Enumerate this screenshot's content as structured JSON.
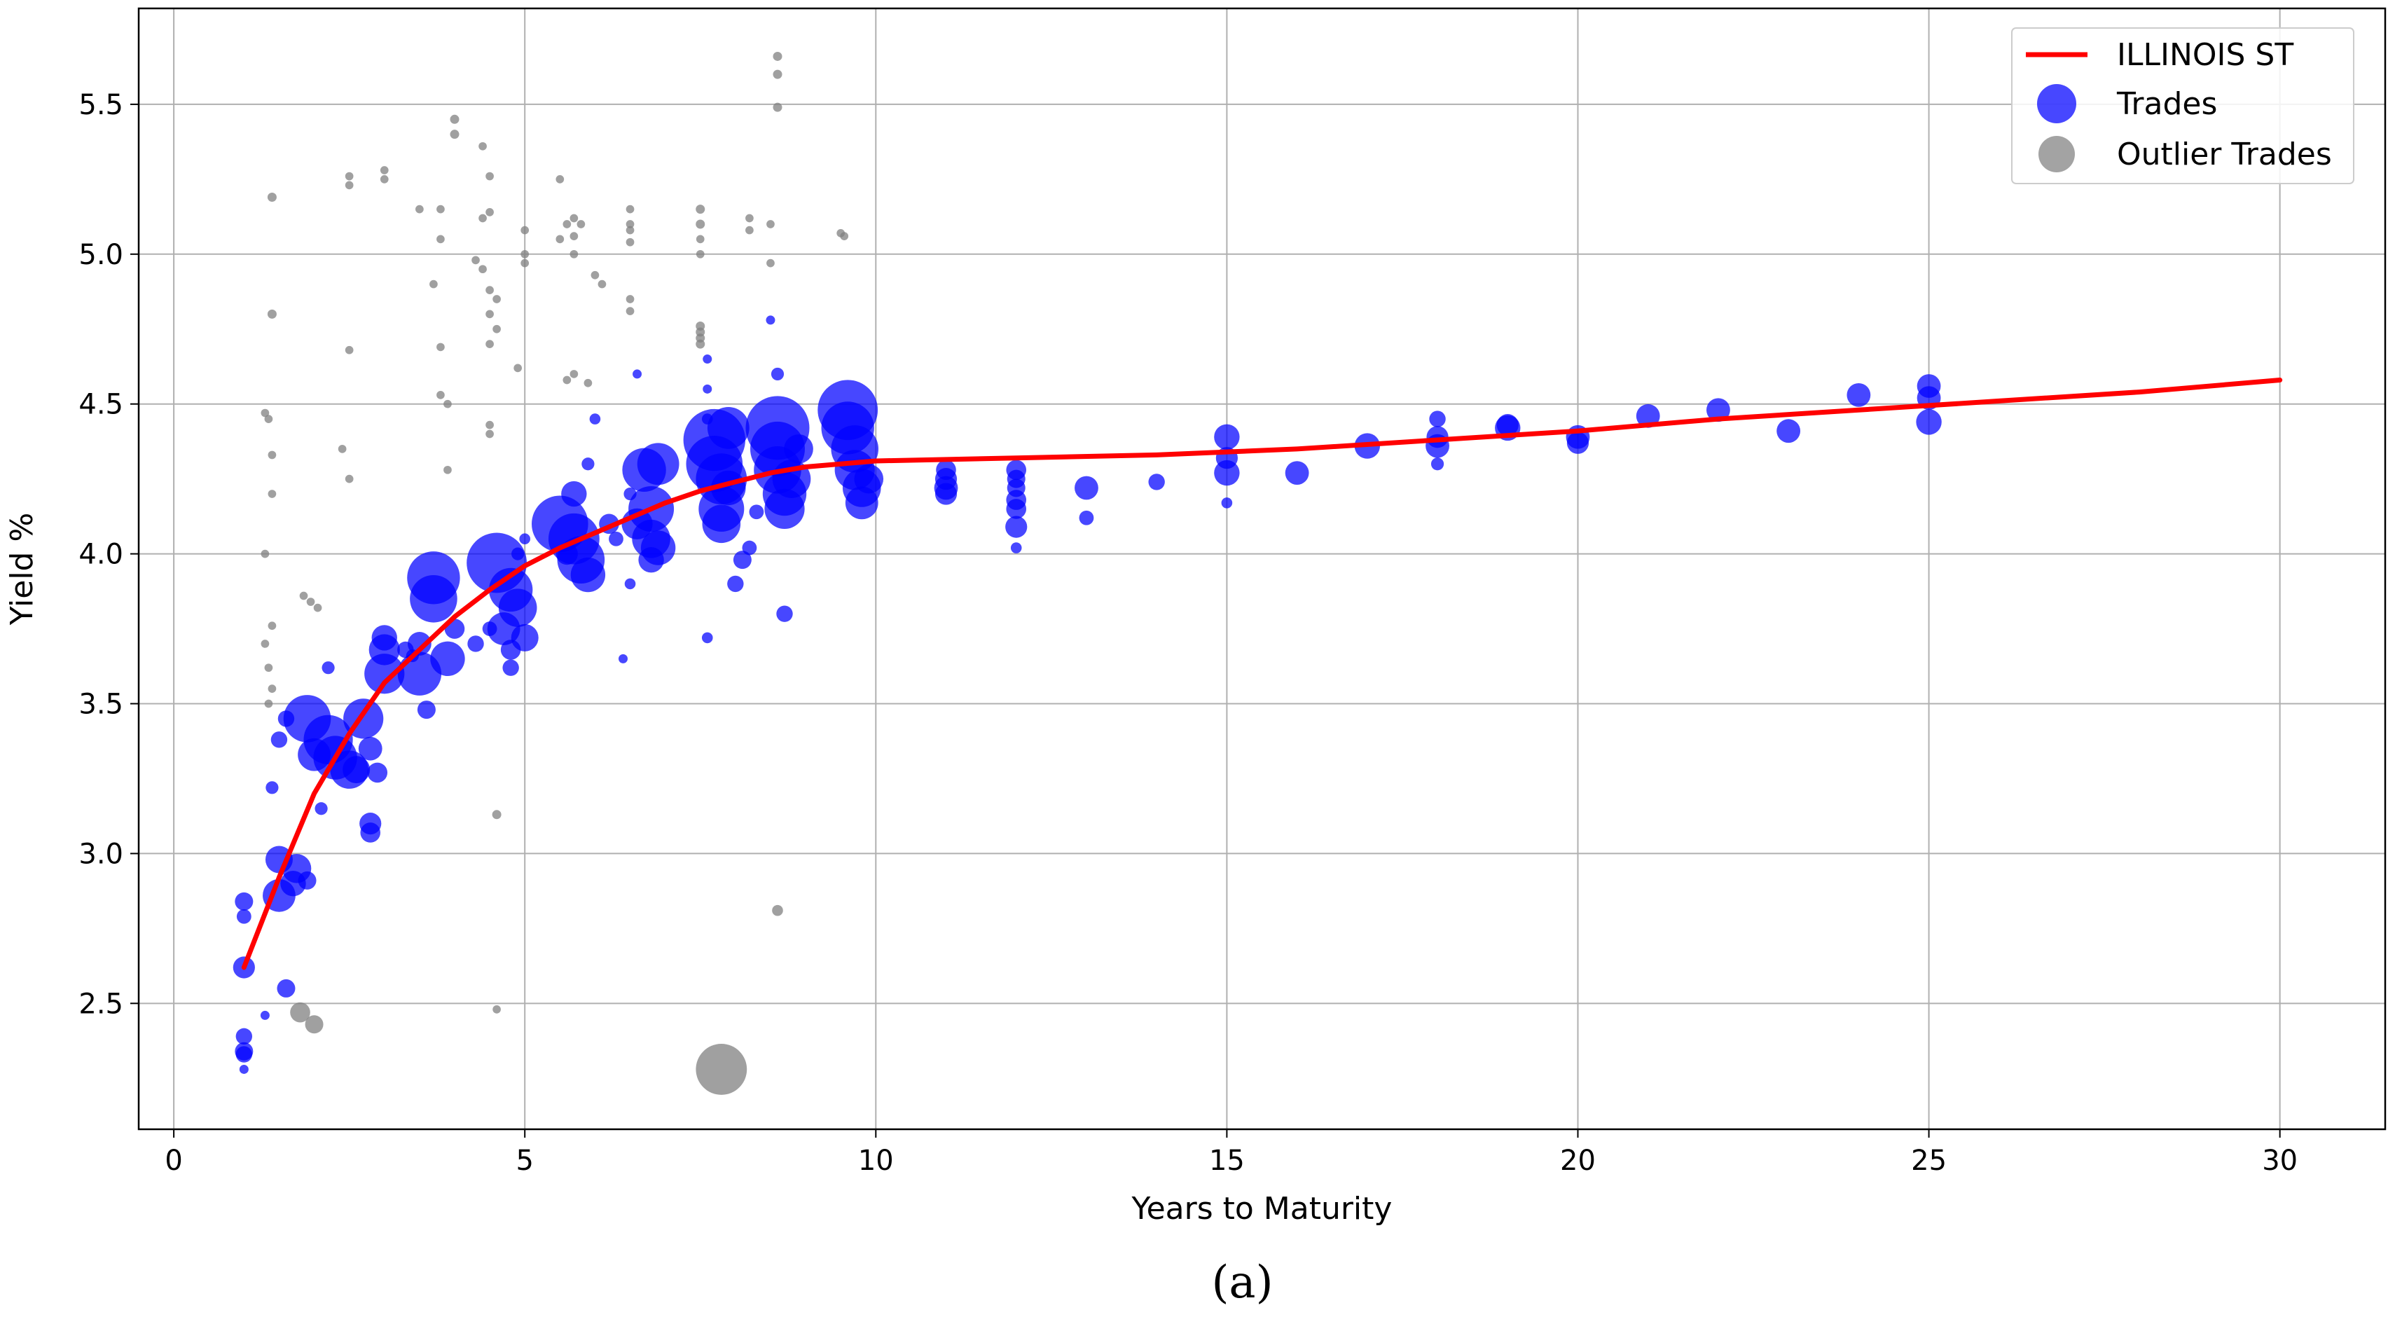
{
  "figure": {
    "panel_label": "(a)"
  },
  "chart_data": {
    "type": "scatter",
    "xlabel": "Years to Maturity",
    "ylabel": "Yield %",
    "xlim": [
      -0.5,
      31.5
    ],
    "ylim": [
      2.08,
      5.82
    ],
    "xticks": [
      0,
      5,
      10,
      15,
      20,
      25,
      30
    ],
    "yticks": [
      2.5,
      3.0,
      3.5,
      4.0,
      4.5,
      5.0,
      5.5
    ],
    "xtick_labels": [
      "0",
      "5",
      "10",
      "15",
      "20",
      "25",
      "30"
    ],
    "ytick_labels": [
      "2.5",
      "3.0",
      "3.5",
      "4.0",
      "4.5",
      "5.0",
      "5.5"
    ],
    "grid": true,
    "legend": {
      "position": "top-right",
      "entries": [
        {
          "label": "ILLINOIS ST",
          "kind": "line",
          "color": "#ff0000"
        },
        {
          "label": "Trades",
          "kind": "marker",
          "color": "#0000ff"
        },
        {
          "label": "Outlier Trades",
          "kind": "marker",
          "color": "#808080"
        }
      ]
    },
    "curve": {
      "name": "ILLINOIS ST",
      "color": "#ff0000",
      "x": [
        1,
        1.5,
        2,
        2.5,
        3,
        3.5,
        4,
        4.5,
        5,
        5.5,
        6,
        6.5,
        7,
        7.5,
        8,
        8.5,
        9,
        9.5,
        10,
        12,
        14,
        16,
        18,
        20,
        22,
        24,
        26,
        28,
        30
      ],
      "y": [
        2.62,
        2.92,
        3.2,
        3.4,
        3.57,
        3.68,
        3.79,
        3.88,
        3.96,
        4.02,
        4.07,
        4.12,
        4.17,
        4.21,
        4.24,
        4.27,
        4.29,
        4.3,
        4.31,
        4.32,
        4.33,
        4.35,
        4.38,
        4.41,
        4.45,
        4.48,
        4.51,
        4.54,
        4.58
      ]
    },
    "series": [
      {
        "name": "Trades",
        "color": "#0000ff",
        "points": [
          [
            1.0,
            2.62,
            1.2
          ],
          [
            1.0,
            2.84,
            1
          ],
          [
            1.0,
            2.79,
            0.8
          ],
          [
            1.0,
            2.39,
            0.9
          ],
          [
            1.0,
            2.34,
            1
          ],
          [
            1.0,
            2.33,
            0.9
          ],
          [
            1.0,
            2.28,
            0.5
          ],
          [
            1.3,
            2.46,
            0.5
          ],
          [
            1.6,
            2.55,
            1
          ],
          [
            1.5,
            2.86,
            1.8
          ],
          [
            1.5,
            2.98,
            1.5
          ],
          [
            1.7,
            2.9,
            1.4
          ],
          [
            1.75,
            2.95,
            1.6
          ],
          [
            1.9,
            2.91,
            1
          ],
          [
            1.4,
            3.22,
            0.7
          ],
          [
            1.5,
            3.38,
            0.9
          ],
          [
            1.6,
            3.45,
            0.9
          ],
          [
            1.9,
            3.45,
            2.6
          ],
          [
            2.0,
            3.33,
            1.8
          ],
          [
            2.2,
            3.38,
            2.7
          ],
          [
            2.3,
            3.32,
            2.4
          ],
          [
            2.5,
            3.28,
            2.1
          ],
          [
            2.7,
            3.45,
            2.2
          ],
          [
            2.6,
            3.28,
            1.5
          ],
          [
            2.8,
            3.35,
            1.3
          ],
          [
            2.9,
            3.27,
            1.1
          ],
          [
            2.8,
            3.1,
            1.2
          ],
          [
            2.8,
            3.07,
            1.1
          ],
          [
            2.1,
            3.15,
            0.7
          ],
          [
            2.2,
            3.62,
            0.7
          ],
          [
            3.0,
            3.6,
            2.2
          ],
          [
            3.0,
            3.68,
            1.7
          ],
          [
            3.0,
            3.72,
            1.4
          ],
          [
            3.3,
            3.68,
            0.9
          ],
          [
            3.4,
            3.66,
            0.7
          ],
          [
            3.5,
            3.6,
            2.4
          ],
          [
            3.6,
            3.48,
            1
          ],
          [
            3.7,
            3.92,
            2.9
          ],
          [
            3.7,
            3.85,
            2.6
          ],
          [
            3.9,
            3.65,
            1.9
          ],
          [
            3.5,
            3.7,
            1.3
          ],
          [
            4.0,
            3.75,
            1.1
          ],
          [
            4.6,
            3.97,
            3.3
          ],
          [
            4.8,
            3.88,
            2.4
          ],
          [
            4.9,
            3.82,
            2.1
          ],
          [
            4.7,
            3.75,
            1.8
          ],
          [
            5.0,
            3.72,
            1.5
          ],
          [
            4.8,
            3.68,
            1.1
          ],
          [
            4.8,
            3.62,
            0.9
          ],
          [
            4.3,
            3.7,
            0.9
          ],
          [
            4.5,
            3.75,
            0.8
          ],
          [
            4.9,
            4.0,
            0.7
          ],
          [
            5.0,
            4.05,
            0.6
          ],
          [
            5.5,
            4.1,
            3.1
          ],
          [
            5.7,
            4.05,
            2.8
          ],
          [
            5.8,
            3.98,
            2.6
          ],
          [
            5.9,
            3.93,
            1.9
          ],
          [
            5.7,
            4.2,
            1.4
          ],
          [
            5.6,
            4.0,
            1.2
          ],
          [
            5.9,
            4.3,
            0.7
          ],
          [
            6.0,
            4.45,
            0.6
          ],
          [
            6.2,
            4.1,
            1.1
          ],
          [
            6.3,
            4.05,
            0.8
          ],
          [
            6.5,
            3.9,
            0.6
          ],
          [
            6.4,
            3.65,
            0.5
          ],
          [
            6.7,
            4.28,
            2.4
          ],
          [
            6.9,
            4.3,
            2.3
          ],
          [
            6.8,
            4.15,
            2.5
          ],
          [
            6.8,
            4.05,
            2.1
          ],
          [
            6.9,
            4.02,
            1.9
          ],
          [
            6.6,
            4.1,
            1.7
          ],
          [
            6.8,
            3.98,
            1.4
          ],
          [
            6.6,
            4.6,
            0.5
          ],
          [
            6.5,
            4.2,
            0.7
          ],
          [
            7.7,
            4.38,
            3.4
          ],
          [
            7.7,
            4.3,
            3.1
          ],
          [
            7.8,
            4.25,
            2.8
          ],
          [
            7.8,
            4.15,
            2.5
          ],
          [
            7.8,
            4.1,
            2.1
          ],
          [
            7.9,
            4.42,
            2.3
          ],
          [
            7.9,
            4.22,
            1.9
          ],
          [
            7.6,
            4.45,
            0.6
          ],
          [
            7.6,
            4.55,
            0.5
          ],
          [
            7.6,
            4.65,
            0.5
          ],
          [
            7.6,
            3.72,
            0.6
          ],
          [
            8.0,
            3.9,
            0.9
          ],
          [
            8.1,
            3.98,
            1
          ],
          [
            8.2,
            4.02,
            0.8
          ],
          [
            8.3,
            4.14,
            0.8
          ],
          [
            8.6,
            4.42,
            3.5
          ],
          [
            8.6,
            4.35,
            3
          ],
          [
            8.6,
            4.28,
            2.6
          ],
          [
            8.7,
            4.2,
            2.4
          ],
          [
            8.7,
            4.15,
            2.2
          ],
          [
            8.8,
            4.25,
            2.1
          ],
          [
            8.9,
            4.35,
            1.6
          ],
          [
            8.6,
            4.6,
            0.7
          ],
          [
            8.7,
            3.8,
            0.9
          ],
          [
            8.5,
            4.78,
            0.5
          ],
          [
            9.6,
            4.48,
            3.3
          ],
          [
            9.6,
            4.42,
            2.9
          ],
          [
            9.7,
            4.35,
            2.6
          ],
          [
            9.7,
            4.28,
            2.2
          ],
          [
            9.8,
            4.22,
            2.1
          ],
          [
            9.8,
            4.17,
            1.8
          ],
          [
            9.9,
            4.25,
            1.6
          ],
          [
            11.0,
            4.28,
            1.1
          ],
          [
            11.0,
            4.25,
            1.2
          ],
          [
            11.0,
            4.22,
            1.3
          ],
          [
            11.0,
            4.2,
            1.2
          ],
          [
            12.0,
            4.28,
            1.1
          ],
          [
            12.0,
            4.25,
            1
          ],
          [
            12.0,
            4.22,
            1
          ],
          [
            12.0,
            4.18,
            1.1
          ],
          [
            12.0,
            4.15,
            1.1
          ],
          [
            12.0,
            4.09,
            1.2
          ],
          [
            12.0,
            4.02,
            0.6
          ],
          [
            13.0,
            4.22,
            1.3
          ],
          [
            13.0,
            4.12,
            0.8
          ],
          [
            14.0,
            4.24,
            0.9
          ],
          [
            15.0,
            4.39,
            1.4
          ],
          [
            15.0,
            4.32,
            1.2
          ],
          [
            15.0,
            4.27,
            1.4
          ],
          [
            15.0,
            4.17,
            0.6
          ],
          [
            16.0,
            4.27,
            1.3
          ],
          [
            17.0,
            4.36,
            1.4
          ],
          [
            18.0,
            4.45,
            0.9
          ],
          [
            18.0,
            4.39,
            1.2
          ],
          [
            18.0,
            4.36,
            1.3
          ],
          [
            18.0,
            4.3,
            0.7
          ],
          [
            19.0,
            4.42,
            1.4
          ],
          [
            19.0,
            4.43,
            1.2
          ],
          [
            20.0,
            4.39,
            1.3
          ],
          [
            20.0,
            4.37,
            1.2
          ],
          [
            21.0,
            4.46,
            1.3
          ],
          [
            22.0,
            4.48,
            1.3
          ],
          [
            23.0,
            4.41,
            1.3
          ],
          [
            24.0,
            4.53,
            1.3
          ],
          [
            25.0,
            4.56,
            1.3
          ],
          [
            25.0,
            4.52,
            1.3
          ],
          [
            25.0,
            4.44,
            1.4
          ]
        ]
      },
      {
        "name": "Outlier Trades",
        "color": "#808080",
        "points": [
          [
            7.8,
            2.28,
            2.8
          ],
          [
            1.8,
            2.47,
            1.1
          ],
          [
            2.0,
            2.43,
            1
          ],
          [
            8.6,
            2.81,
            0.6
          ],
          [
            4.6,
            3.13,
            0.5
          ],
          [
            4.6,
            2.48,
            0.45
          ],
          [
            1.4,
            5.19,
            0.5
          ],
          [
            1.4,
            4.8,
            0.5
          ],
          [
            1.3,
            4.47,
            0.45
          ],
          [
            1.35,
            4.45,
            0.45
          ],
          [
            1.4,
            4.33,
            0.45
          ],
          [
            1.4,
            4.2,
            0.45
          ],
          [
            1.3,
            4.0,
            0.45
          ],
          [
            1.3,
            3.7,
            0.45
          ],
          [
            1.35,
            3.62,
            0.45
          ],
          [
            1.4,
            3.55,
            0.45
          ],
          [
            1.35,
            3.5,
            0.45
          ],
          [
            1.4,
            3.76,
            0.45
          ],
          [
            1.85,
            3.86,
            0.45
          ],
          [
            1.95,
            3.84,
            0.45
          ],
          [
            2.05,
            3.82,
            0.45
          ],
          [
            2.5,
            5.26,
            0.45
          ],
          [
            2.5,
            5.23,
            0.45
          ],
          [
            2.5,
            4.68,
            0.45
          ],
          [
            2.4,
            4.35,
            0.45
          ],
          [
            2.5,
            4.25,
            0.45
          ],
          [
            3.0,
            5.28,
            0.45
          ],
          [
            3.0,
            5.25,
            0.45
          ],
          [
            3.5,
            5.15,
            0.45
          ],
          [
            3.8,
            5.15,
            0.45
          ],
          [
            3.7,
            4.9,
            0.45
          ],
          [
            3.8,
            5.05,
            0.45
          ],
          [
            3.8,
            4.69,
            0.45
          ],
          [
            3.8,
            4.53,
            0.45
          ],
          [
            3.9,
            4.5,
            0.45
          ],
          [
            3.9,
            4.28,
            0.45
          ],
          [
            4.0,
            5.45,
            0.5
          ],
          [
            4.0,
            5.4,
            0.5
          ],
          [
            4.4,
            5.36,
            0.45
          ],
          [
            4.5,
            5.26,
            0.45
          ],
          [
            4.4,
            5.12,
            0.45
          ],
          [
            4.5,
            5.14,
            0.45
          ],
          [
            4.3,
            4.98,
            0.45
          ],
          [
            4.4,
            4.95,
            0.45
          ],
          [
            4.5,
            4.88,
            0.45
          ],
          [
            4.5,
            4.8,
            0.45
          ],
          [
            4.6,
            4.85,
            0.45
          ],
          [
            4.6,
            4.75,
            0.45
          ],
          [
            4.5,
            4.7,
            0.45
          ],
          [
            4.5,
            4.43,
            0.45
          ],
          [
            4.5,
            4.4,
            0.45
          ],
          [
            4.9,
            4.62,
            0.45
          ],
          [
            5.0,
            5.08,
            0.45
          ],
          [
            5.0,
            5.0,
            0.45
          ],
          [
            5.0,
            4.97,
            0.45
          ],
          [
            5.5,
            5.25,
            0.45
          ],
          [
            5.6,
            5.1,
            0.45
          ],
          [
            5.5,
            5.05,
            0.45
          ],
          [
            5.7,
            5.12,
            0.45
          ],
          [
            5.8,
            5.1,
            0.45
          ],
          [
            5.7,
            5.06,
            0.45
          ],
          [
            5.7,
            5.0,
            0.45
          ],
          [
            5.6,
            4.58,
            0.45
          ],
          [
            5.7,
            4.6,
            0.45
          ],
          [
            5.9,
            4.57,
            0.45
          ],
          [
            6.0,
            4.93,
            0.45
          ],
          [
            6.1,
            4.9,
            0.45
          ],
          [
            6.5,
            5.15,
            0.45
          ],
          [
            6.5,
            5.1,
            0.45
          ],
          [
            6.5,
            5.08,
            0.45
          ],
          [
            6.5,
            5.04,
            0.45
          ],
          [
            6.5,
            4.85,
            0.45
          ],
          [
            6.5,
            4.81,
            0.45
          ],
          [
            7.5,
            5.15,
            0.5
          ],
          [
            7.5,
            5.1,
            0.5
          ],
          [
            7.5,
            5.05,
            0.45
          ],
          [
            7.5,
            5.0,
            0.45
          ],
          [
            7.5,
            4.76,
            0.5
          ],
          [
            7.5,
            4.74,
            0.5
          ],
          [
            7.5,
            4.72,
            0.5
          ],
          [
            7.5,
            4.7,
            0.5
          ],
          [
            8.2,
            5.12,
            0.45
          ],
          [
            8.2,
            5.08,
            0.45
          ],
          [
            8.5,
            4.97,
            0.45
          ],
          [
            8.5,
            5.1,
            0.45
          ],
          [
            8.6,
            5.66,
            0.5
          ],
          [
            8.6,
            5.6,
            0.5
          ],
          [
            8.6,
            5.49,
            0.5
          ],
          [
            9.5,
            5.07,
            0.45
          ],
          [
            9.55,
            5.06,
            0.45
          ]
        ]
      }
    ]
  }
}
